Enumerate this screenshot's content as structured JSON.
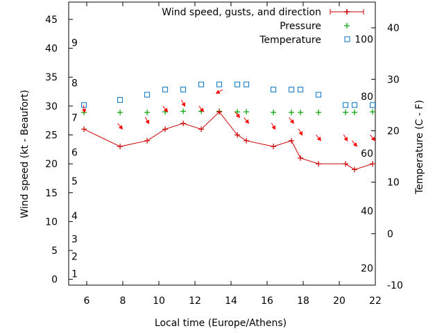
{
  "chart_data": {
    "type": "line",
    "xlabel": "Local time (Europe/Athens)",
    "ylabel_left": "Wind speed (kt - Beaufort)",
    "ylabel_right": "Temperature (C - F)",
    "xlim": [
      5,
      22
    ],
    "ylim_left": [
      -1,
      48
    ],
    "ylim_right": [
      -10,
      45
    ],
    "x_ticks": [
      6,
      8,
      10,
      12,
      14,
      16,
      18,
      20,
      22
    ],
    "y_ticks_left": [
      0,
      5,
      10,
      15,
      20,
      25,
      30,
      35,
      40,
      45
    ],
    "y_ticks_right": [
      -10,
      0,
      10,
      20,
      30,
      40
    ],
    "beaufort_labels": [
      {
        "label": "1",
        "kt": 1
      },
      {
        "label": "2",
        "kt": 4
      },
      {
        "label": "3",
        "kt": 7
      },
      {
        "label": "4",
        "kt": 11
      },
      {
        "label": "5",
        "kt": 17
      },
      {
        "label": "6",
        "kt": 22
      },
      {
        "label": "7",
        "kt": 28
      },
      {
        "label": "8",
        "kt": 34
      },
      {
        "label": "9",
        "kt": 41
      }
    ],
    "fahrenheit_labels": [
      {
        "label": "20",
        "c": -6.7
      },
      {
        "label": "40",
        "c": 4.4
      },
      {
        "label": "60",
        "c": 15.6
      },
      {
        "label": "80",
        "c": 26.7
      },
      {
        "label": "100",
        "c": 37.8
      }
    ],
    "legend": {
      "placement": "top-right",
      "entries": [
        "Wind speed, gusts, and direction",
        "Pressure",
        "Temperature"
      ]
    },
    "colors": {
      "wind": "#cc0000",
      "pressure": "#00a000",
      "temperature": "#0070c0",
      "arrow": "#ff0000"
    },
    "series": [
      {
        "name": "Wind speed, gusts, and direction",
        "axis": "left",
        "x": [
          5.85,
          7.85,
          9.35,
          10.35,
          11.35,
          12.35,
          13.35,
          14.35,
          14.85,
          16.35,
          17.35,
          17.85,
          18.85,
          20.35,
          20.85,
          21.85
        ],
        "values": [
          26,
          23,
          24,
          26,
          27,
          26,
          29,
          25,
          24,
          23,
          24,
          21,
          20,
          20,
          19,
          20
        ]
      },
      {
        "name": "Pressure",
        "axis": "left",
        "x": [
          5.85,
          7.85,
          9.35,
          10.35,
          11.35,
          12.35,
          13.35,
          14.35,
          14.85,
          16.35,
          17.35,
          17.85,
          18.85,
          20.35,
          20.85,
          21.85
        ],
        "values": [
          28.9,
          28.9,
          28.9,
          29.0,
          29.1,
          29.1,
          29.1,
          29.0,
          29.0,
          28.9,
          28.9,
          28.9,
          28.9,
          28.9,
          28.9,
          29.0
        ]
      },
      {
        "name": "Temperature",
        "axis": "right",
        "x": [
          5.85,
          7.85,
          9.35,
          10.35,
          11.35,
          12.35,
          13.35,
          14.35,
          14.85,
          16.35,
          17.35,
          17.85,
          18.85,
          20.35,
          20.85,
          21.85
        ],
        "values": [
          25,
          26,
          27,
          28,
          28,
          29,
          29,
          29,
          29,
          28,
          28,
          28,
          27,
          25,
          25,
          25
        ]
      }
    ],
    "wind_direction": {
      "x": [
        5.85,
        7.85,
        9.35,
        10.35,
        11.35,
        12.35,
        13.35,
        14.35,
        14.85,
        16.35,
        17.35,
        17.85,
        18.85,
        20.35,
        20.85,
        21.85
      ],
      "kt": [
        29.5,
        26.5,
        27.5,
        29.5,
        30.5,
        29.5,
        32.5,
        28.5,
        27.5,
        26.5,
        27.5,
        25.5,
        24.5,
        24.5,
        23.5,
        24.5
      ],
      "direction_deg": [
        350,
        320,
        330,
        320,
        330,
        320,
        60,
        320,
        320,
        330,
        320,
        330,
        320,
        330,
        320,
        320
      ]
    }
  }
}
